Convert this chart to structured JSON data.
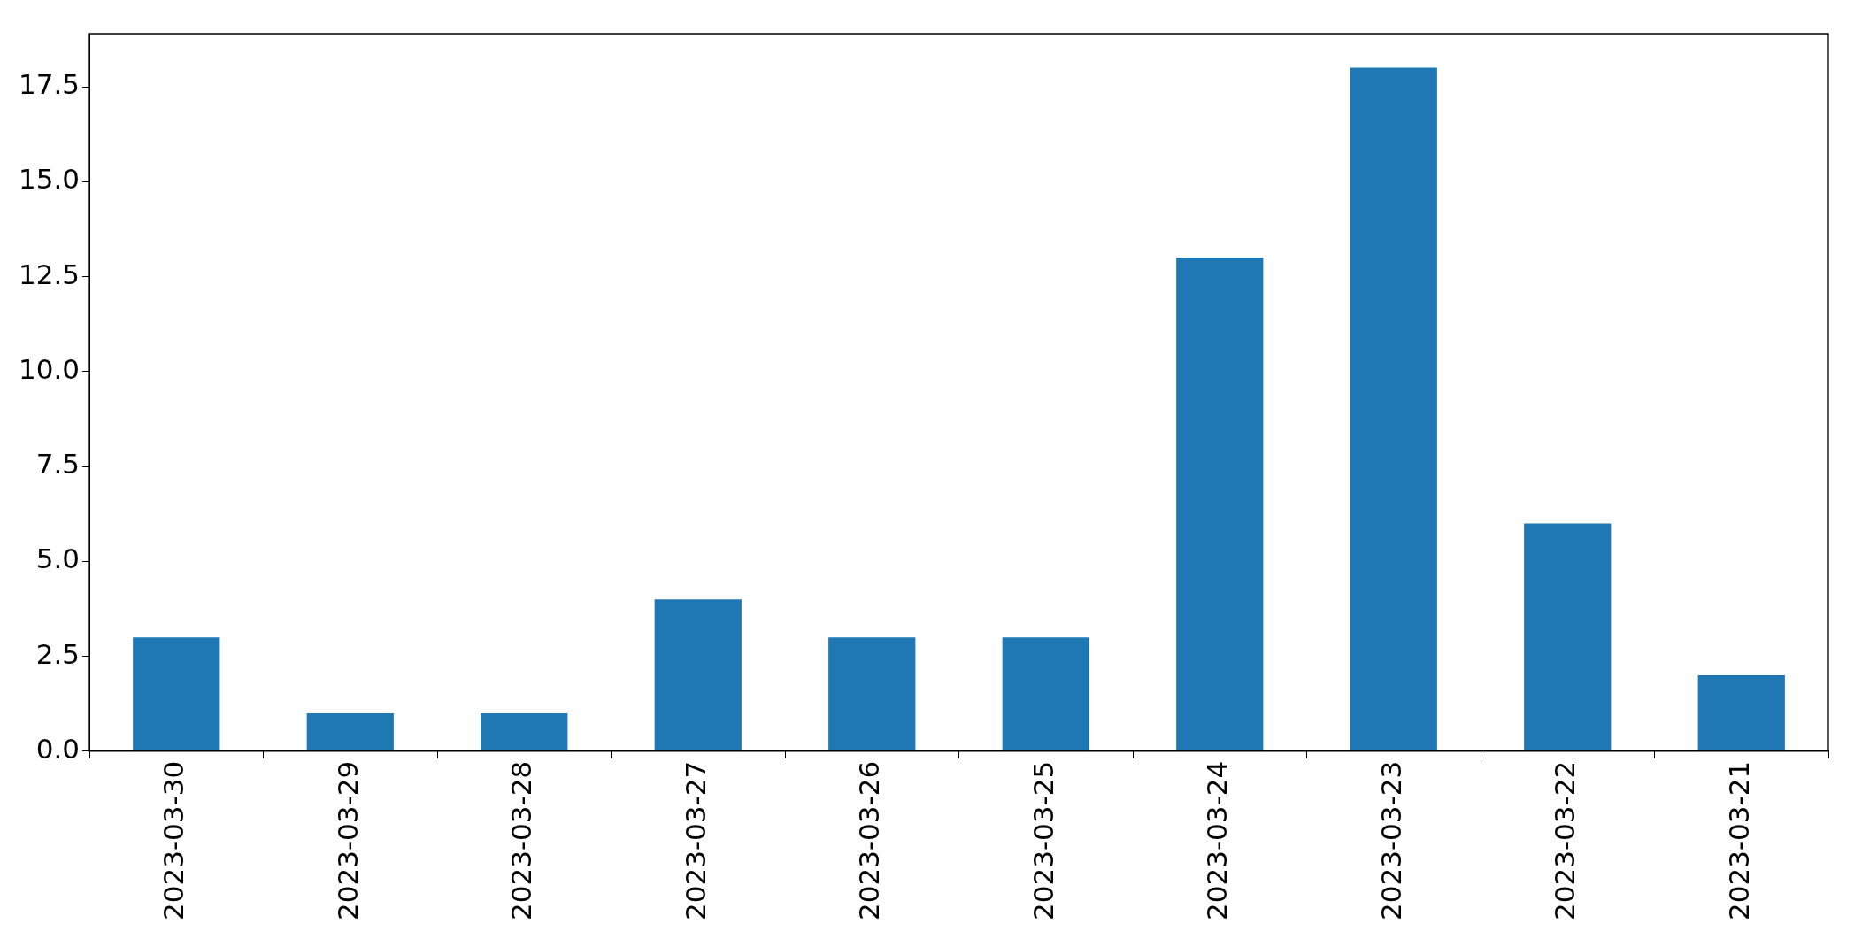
{
  "chart_data": {
    "type": "bar",
    "categories": [
      "2023-03-30",
      "2023-03-29",
      "2023-03-28",
      "2023-03-27",
      "2023-03-26",
      "2023-03-25",
      "2023-03-24",
      "2023-03-23",
      "2023-03-22",
      "2023-03-21"
    ],
    "values": [
      3,
      1,
      1,
      4,
      3,
      3,
      13,
      18,
      6,
      2
    ],
    "color": "#1f77b4",
    "ylim": [
      0,
      18.9
    ],
    "yticks": [
      {
        "value": 0,
        "label": "0.0"
      },
      {
        "value": 2.5,
        "label": "2.5"
      },
      {
        "value": 5,
        "label": "5.0"
      },
      {
        "value": 7.5,
        "label": "7.5"
      },
      {
        "value": 10,
        "label": "10.0"
      },
      {
        "value": 12.5,
        "label": "12.5"
      },
      {
        "value": 15,
        "label": "15.0"
      },
      {
        "value": 17.5,
        "label": "17.5"
      }
    ]
  }
}
